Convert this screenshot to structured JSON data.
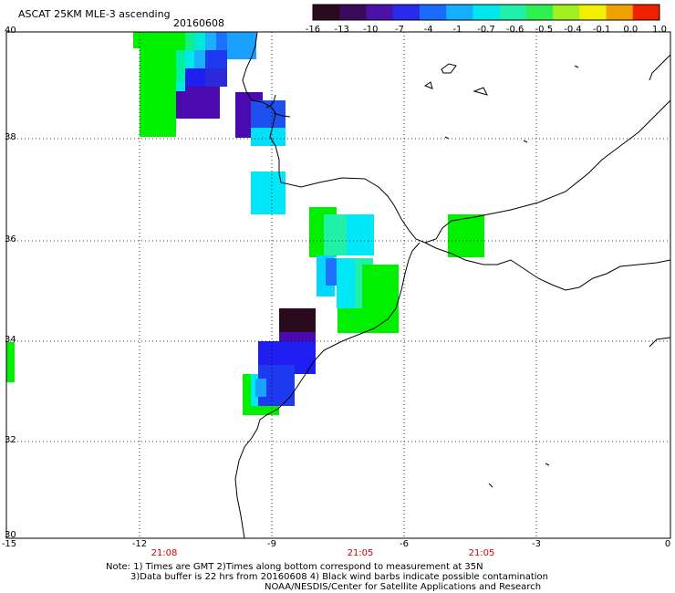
{
  "header": {
    "title": "ASCAT 25KM MLE-3 ascending",
    "date": "20160608"
  },
  "colorbar": {
    "labels": [
      "-16",
      "-13",
      "-10",
      "-7",
      "-4",
      "-1",
      "-0.7",
      "-0.6",
      "-0.5",
      "-0.4",
      "-0.1",
      "0.0",
      "1.0"
    ],
    "colors": [
      "#2a0a1e",
      "#3c0a5a",
      "#4a12a8",
      "#2a2aee",
      "#1a6cff",
      "#14b0ff",
      "#00e8ee",
      "#20f0a8",
      "#30f050",
      "#a0f020",
      "#f0f000",
      "#f0a000",
      "#f02000"
    ]
  },
  "axes": {
    "y_labels": [
      "40",
      "38",
      "36",
      "34",
      "32",
      "30"
    ],
    "x_labels": [
      "-15",
      "-12",
      "-9",
      "-6",
      "-3",
      "0"
    ],
    "times": [
      "21:08",
      "21:05",
      "21:05"
    ]
  },
  "notes": {
    "line1": "Note: 1) Times are GMT 2)Times along bottom correspond to measurement at 35N",
    "line2": "3)Data buffer is 22 hrs from 20160608 4) Black wind barbs indicate possible contamination",
    "line3": "NOAA/NESDIS/Center for Satellite Applications and Research"
  },
  "colors": {
    "green": "#00f000",
    "purple": "#4b0ab0",
    "blue": "#1e1ef0",
    "lightblue": "#1aa0ff",
    "cyan": "#00e8f8",
    "dark": "#2a0a1e",
    "time_red": "#cc0000"
  }
}
